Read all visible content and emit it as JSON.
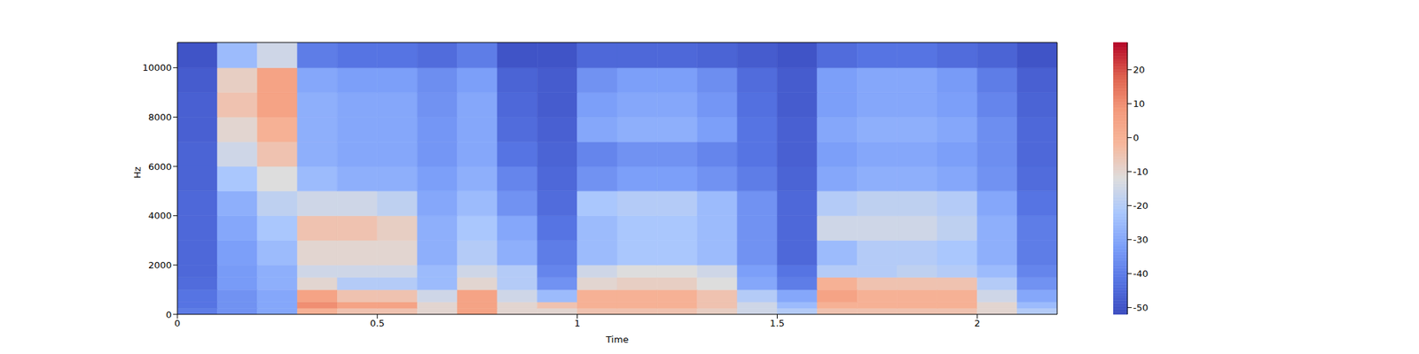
{
  "chart_data": {
    "type": "heatmap",
    "x_label": "Time",
    "y_label": "Hz",
    "x_edges": [
      0,
      0.1,
      0.2,
      0.3,
      0.4,
      0.5,
      0.6,
      0.7,
      0.8,
      0.9,
      1.0,
      1.1,
      1.2,
      1.3,
      1.4,
      1.5,
      1.6,
      1.7,
      1.8,
      1.9,
      2.0,
      2.1,
      2.2
    ],
    "y_edges": [
      0,
      250,
      500,
      1000,
      1500,
      2000,
      3000,
      4000,
      5000,
      6000,
      7000,
      8000,
      9000,
      10000,
      11025
    ],
    "values": [
      [
        -40,
        -35,
        -30,
        0,
        -5,
        -5,
        -10,
        5,
        -10,
        -10,
        -5,
        -5,
        -5,
        -8,
        -15,
        -20,
        -5,
        -5,
        -5,
        -5,
        -10,
        -20
      ],
      [
        -42,
        -35,
        -30,
        10,
        5,
        5,
        -10,
        5,
        -10,
        -5,
        0,
        0,
        0,
        -5,
        -15,
        -25,
        0,
        0,
        0,
        0,
        -10,
        -25
      ],
      [
        -42,
        -35,
        -30,
        5,
        -5,
        -5,
        -15,
        5,
        -15,
        -25,
        0,
        0,
        0,
        -5,
        -20,
        -30,
        5,
        0,
        0,
        0,
        -15,
        -30
      ],
      [
        -44,
        -33,
        -28,
        -10,
        -20,
        -20,
        -25,
        -10,
        -20,
        -35,
        -10,
        -8,
        -8,
        -12,
        -30,
        -40,
        0,
        -5,
        -5,
        -5,
        -20,
        -35
      ],
      [
        -45,
        -33,
        -28,
        -15,
        -15,
        -15,
        -25,
        -15,
        -20,
        -38,
        -15,
        -12,
        -12,
        -15,
        -32,
        -42,
        -20,
        -20,
        -18,
        -20,
        -25,
        -38
      ],
      [
        -45,
        -32,
        -25,
        -10,
        -10,
        -10,
        -28,
        -20,
        -28,
        -40,
        -25,
        -22,
        -22,
        -25,
        -35,
        -45,
        -25,
        -20,
        -20,
        -22,
        -28,
        -40
      ],
      [
        -45,
        -30,
        -22,
        -5,
        -5,
        -8,
        -28,
        -22,
        -30,
        -42,
        -25,
        -22,
        -22,
        -25,
        -35,
        -45,
        -15,
        -15,
        -15,
        -18,
        -28,
        -40
      ],
      [
        -45,
        -28,
        -18,
        -15,
        -15,
        -18,
        -30,
        -25,
        -35,
        -44,
        -22,
        -20,
        -20,
        -25,
        -35,
        -45,
        -20,
        -18,
        -18,
        -20,
        -30,
        -42
      ],
      [
        -46,
        -22,
        -12,
        -25,
        -28,
        -28,
        -32,
        -28,
        -38,
        -45,
        -35,
        -32,
        -32,
        -35,
        -40,
        -46,
        -30,
        -28,
        -28,
        -30,
        -35,
        -44
      ],
      [
        -46,
        -15,
        -5,
        -28,
        -30,
        -30,
        -34,
        -30,
        -42,
        -46,
        -38,
        -35,
        -35,
        -38,
        -42,
        -47,
        -32,
        -30,
        -30,
        -32,
        -36,
        -45
      ],
      [
        -47,
        -10,
        0,
        -28,
        -30,
        -30,
        -34,
        -30,
        -44,
        -47,
        -30,
        -28,
        -28,
        -32,
        -42,
        -47,
        -30,
        -28,
        -28,
        -30,
        -36,
        -45
      ],
      [
        -47,
        -5,
        5,
        -28,
        -30,
        -30,
        -35,
        -30,
        -45,
        -48,
        -32,
        -30,
        -30,
        -34,
        -43,
        -48,
        -32,
        -30,
        -30,
        -32,
        -38,
        -46
      ],
      [
        -48,
        -8,
        5,
        -30,
        -32,
        -32,
        -36,
        -32,
        -46,
        -48,
        -35,
        -32,
        -32,
        -36,
        -44,
        -48,
        -32,
        -30,
        -30,
        -33,
        -40,
        -47
      ],
      [
        -50,
        -25,
        -15,
        -40,
        -42,
        -42,
        -44,
        -40,
        -50,
        -50,
        -45,
        -45,
        -45,
        -46,
        -48,
        -50,
        -44,
        -42,
        -42,
        -44,
        -46,
        -50
      ]
    ],
    "xlim": [
      0,
      2.2
    ],
    "ylim": [
      0,
      11025
    ],
    "xticks": [
      0,
      0.5,
      1,
      1.5,
      2
    ],
    "yticks": [
      0,
      2000,
      4000,
      6000,
      8000,
      10000
    ],
    "colorbar": {
      "range": [
        -52,
        28
      ],
      "ticks": [
        -50,
        -40,
        -30,
        -20,
        -10,
        0,
        10,
        20
      ]
    }
  }
}
